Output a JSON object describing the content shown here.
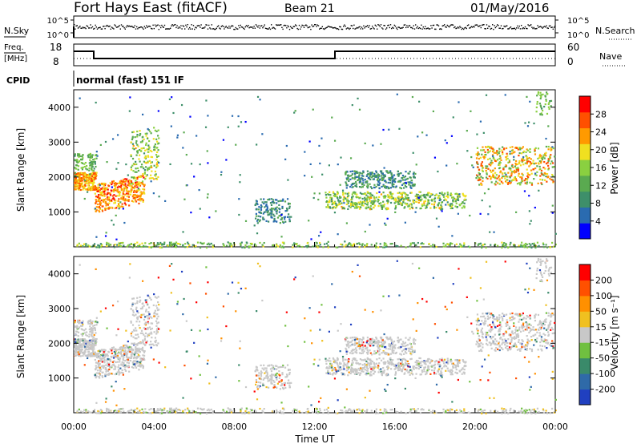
{
  "header": {
    "title": "Fort Hays East (fitACF)",
    "beam": "Beam 21",
    "date": "01/May/2016"
  },
  "panels": {
    "nsky_label": "N.Sky",
    "nsearch_label": "N.Search",
    "noise_ticks_left": [
      "10^5",
      "10^0"
    ],
    "noise_ticks_right": [
      "10^5",
      "10^0"
    ],
    "freq_label_1": "Freq.",
    "freq_label_2": "[MHz]",
    "freq_ticks": [
      "18",
      "8"
    ],
    "nave_label": "Nave",
    "nave_ticks": [
      "60",
      "0"
    ],
    "cpid_label": "CPID",
    "cpid_text": "normal (fast) 151 IF"
  },
  "chart_data": [
    {
      "type": "heatmap",
      "name": "power",
      "ylabel": "Slant Range [km]",
      "y_ticks": [
        "4000",
        "3000",
        "2000",
        "1000"
      ],
      "colorbar_label": "Power [dB]",
      "colorbar_ticks": [
        "28",
        "24",
        "20",
        "16",
        "12",
        "8",
        "4"
      ],
      "colorbar_colors": [
        "#0000ff",
        "#2a6bb0",
        "#3e8f6a",
        "#5aaa50",
        "#8ad040",
        "#f0e020",
        "#ff9a00",
        "#ff5000",
        "#ff0000"
      ]
    },
    {
      "type": "heatmap",
      "name": "velocity",
      "ylabel": "Slant Range [km]",
      "y_ticks": [
        "4000",
        "3000",
        "2000",
        "1000"
      ],
      "colorbar_label": "Velocity [m s⁻¹]",
      "colorbar_ticks": [
        "200",
        "100",
        "50",
        "15",
        "-15",
        "-50",
        "-100",
        "-200"
      ],
      "colorbar_colors": [
        "#2040c0",
        "#2f6aa8",
        "#3a8a6a",
        "#70c040",
        "#c8c8c8",
        "#f0c020",
        "#ff9000",
        "#ff5000",
        "#ff0000"
      ],
      "x_ticks": [
        "00:00",
        "04:00",
        "08:00",
        "12:00",
        "16:00",
        "20:00",
        "00:00"
      ],
      "xlabel": "Time UT"
    }
  ]
}
